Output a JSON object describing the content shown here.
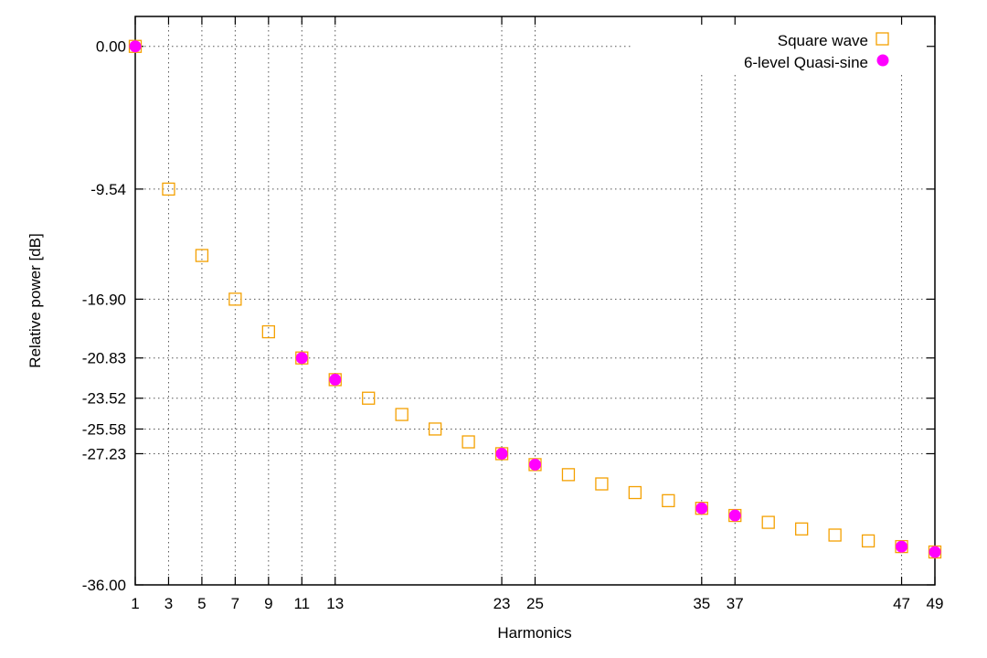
{
  "chart_data": {
    "type": "scatter",
    "title": "",
    "xlabel": "Harmonics",
    "ylabel": "Relative power [dB]",
    "xlim": [
      1,
      49
    ],
    "ylim": [
      -36.0,
      2.0
    ],
    "grid": true,
    "legend_position": "top-right",
    "x_ticks": [
      1,
      3,
      5,
      7,
      9,
      11,
      13,
      23,
      25,
      35,
      37,
      47,
      49
    ],
    "y_ticks": [
      "0.00",
      "-9.54",
      "-16.90",
      "-20.83",
      "-23.52",
      "-25.58",
      "-27.23",
      "-36.00"
    ],
    "series": [
      {
        "name": "Square wave",
        "marker": "open-square",
        "color": "#f4a000",
        "points": [
          {
            "x": 1,
            "y": 0.0
          },
          {
            "x": 3,
            "y": -9.54
          },
          {
            "x": 5,
            "y": -13.98
          },
          {
            "x": 7,
            "y": -16.9
          },
          {
            "x": 9,
            "y": -19.08
          },
          {
            "x": 11,
            "y": -20.83
          },
          {
            "x": 13,
            "y": -22.28
          },
          {
            "x": 15,
            "y": -23.52
          },
          {
            "x": 17,
            "y": -24.61
          },
          {
            "x": 19,
            "y": -25.58
          },
          {
            "x": 21,
            "y": -26.44
          },
          {
            "x": 23,
            "y": -27.23
          },
          {
            "x": 25,
            "y": -27.96
          },
          {
            "x": 27,
            "y": -28.63
          },
          {
            "x": 29,
            "y": -29.25
          },
          {
            "x": 31,
            "y": -29.83
          },
          {
            "x": 33,
            "y": -30.37
          },
          {
            "x": 35,
            "y": -30.88
          },
          {
            "x": 37,
            "y": -31.36
          },
          {
            "x": 39,
            "y": -31.82
          },
          {
            "x": 41,
            "y": -32.26
          },
          {
            "x": 43,
            "y": -32.67
          },
          {
            "x": 45,
            "y": -33.06
          },
          {
            "x": 47,
            "y": -33.44
          },
          {
            "x": 49,
            "y": -33.8
          }
        ]
      },
      {
        "name": "6-level Quasi-sine",
        "marker": "filled-circle",
        "color": "#ff00ff",
        "points": [
          {
            "x": 1,
            "y": 0.0
          },
          {
            "x": 11,
            "y": -20.83
          },
          {
            "x": 13,
            "y": -22.28
          },
          {
            "x": 23,
            "y": -27.23
          },
          {
            "x": 25,
            "y": -27.96
          },
          {
            "x": 35,
            "y": -30.88
          },
          {
            "x": 37,
            "y": -31.36
          },
          {
            "x": 47,
            "y": -33.44
          },
          {
            "x": 49,
            "y": -33.8
          }
        ]
      }
    ]
  }
}
